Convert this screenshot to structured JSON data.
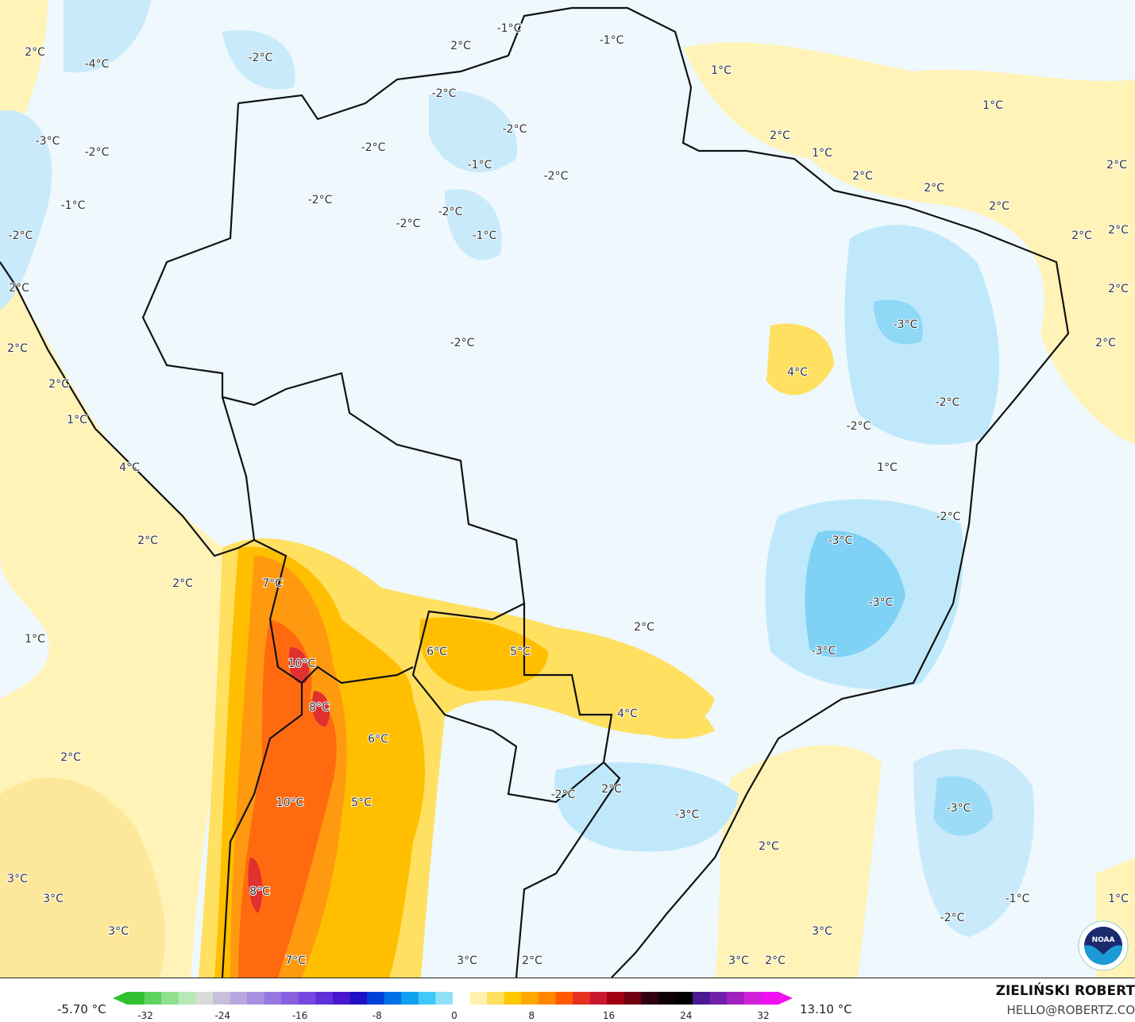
{
  "map": {
    "labels": [
      "2°C",
      "-4°C",
      "-2°C",
      "2°C",
      "-1°C",
      "-1°C",
      "1°C",
      "-2°C",
      "1°C",
      "-2°C",
      "-3°C",
      "-2°C",
      "-2°C",
      "2°C",
      "1°C",
      "-1°C",
      "-2°C",
      "2°C",
      "2°C",
      "2°C",
      "-1°C",
      "-2°C",
      "-2°C",
      "2°C",
      "-2°C",
      "-2°C",
      "-1°C",
      "2°C",
      "2°C",
      "2°C",
      "2°C",
      "-3°C",
      "-2°C",
      "2°C",
      "2°C",
      "4°C",
      "2°C",
      "-2°C",
      "1°C",
      "-2°C",
      "4°C",
      "1°C",
      "-2°C",
      "2°C",
      "-3°C",
      "7°C",
      "2°C",
      "-3°C",
      "2°C",
      "1°C",
      "6°C",
      "5°C",
      "-3°C",
      "10°C",
      "8°C",
      "4°C",
      "6°C",
      "2°C",
      "10°C",
      "5°C",
      "-2°C",
      "2°C",
      "-3°C",
      "-3°C",
      "2°C",
      "3°C",
      "3°C",
      "8°C",
      "-1°C",
      "1°C",
      "-2°C",
      "3°C",
      "3°C",
      "7°C",
      "3°C",
      "2°C",
      "3°C",
      "2°C"
    ],
    "logo_text": "NOAA"
  },
  "colorbar": {
    "min_value": "-5.70 °C",
    "max_value": "13.10 °C",
    "ticks": [
      "-32",
      "-24",
      "-16",
      "-8",
      "0",
      "8",
      "16",
      "24",
      "32"
    ],
    "colors": [
      "#2fc12f",
      "#5fd35f",
      "#8fe08f",
      "#b8e8b8",
      "#d8dcd8",
      "#c8c0d8",
      "#b8a8e0",
      "#a890e0",
      "#9878e0",
      "#8860e0",
      "#7848e0",
      "#6030d8",
      "#4818d0",
      "#2010c8",
      "#0040d8",
      "#0070e8",
      "#10a0f0",
      "#40c8f8",
      "#90e0f8",
      "#ffffff",
      "#fff2b0",
      "#ffe060",
      "#ffc800",
      "#ffa800",
      "#ff8800",
      "#ff5a00",
      "#e83020",
      "#c81830",
      "#a00010",
      "#700010",
      "#300010",
      "#100008",
      "#000000",
      "#4a1890",
      "#7020a8",
      "#a020c0",
      "#d020d8",
      "#f010f0"
    ]
  },
  "branding": {
    "author": "ZIELIŃSKI ROBERT",
    "email": "HELLO@ROBERTZ.CO"
  }
}
